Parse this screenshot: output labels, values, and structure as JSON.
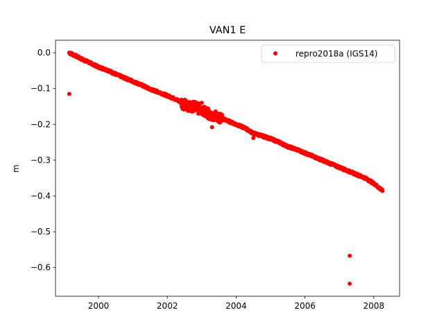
{
  "chart_data": {
    "type": "scatter",
    "title": "VAN1 E",
    "xlabel": "",
    "ylabel": "m",
    "xlim": [
      1998.75,
      2008.75
    ],
    "ylim": [
      -0.68,
      0.035
    ],
    "xticks": [
      2000,
      2002,
      2004,
      2006,
      2008
    ],
    "xtick_labels": [
      "2000",
      "2002",
      "2004",
      "2006",
      "2008"
    ],
    "yticks": [
      0.0,
      -0.1,
      -0.2,
      -0.3,
      -0.4,
      -0.5,
      -0.6
    ],
    "ytick_labels": [
      "0.0",
      "−0.1",
      "−0.2",
      "−0.3",
      "−0.4",
      "−0.5",
      "−0.6"
    ],
    "grid": false,
    "legend": {
      "position": "upper right",
      "entries": [
        "repro2018a (IGS14)"
      ]
    },
    "series": [
      {
        "name": "repro2018a (IGS14)",
        "color": "#ff0000",
        "marker": "circle",
        "trend": {
          "x_start": 1999.15,
          "y_start": 0.0,
          "x_end": 2008.25,
          "y_end": -0.385
        },
        "x": [
          1999.15,
          1999.3,
          1999.5,
          1999.75,
          2000.0,
          2000.25,
          2000.5,
          2000.75,
          2001.0,
          2001.25,
          2001.5,
          2001.75,
          2002.0,
          2002.25,
          2002.5,
          2002.75,
          2003.0,
          2003.25,
          2003.5,
          2003.75,
          2004.0,
          2004.25,
          2004.5,
          2004.75,
          2005.0,
          2005.25,
          2005.5,
          2005.75,
          2006.0,
          2006.25,
          2006.5,
          2006.75,
          2007.0,
          2007.25,
          2007.5,
          2007.75,
          2008.0,
          2008.25
        ],
        "y": [
          0.0,
          -0.007,
          -0.017,
          -0.028,
          -0.04,
          -0.048,
          -0.06,
          -0.07,
          -0.08,
          -0.09,
          -0.102,
          -0.11,
          -0.12,
          -0.13,
          -0.145,
          -0.15,
          -0.158,
          -0.175,
          -0.18,
          -0.19,
          -0.2,
          -0.21,
          -0.225,
          -0.232,
          -0.24,
          -0.25,
          -0.262,
          -0.27,
          -0.28,
          -0.29,
          -0.3,
          -0.31,
          -0.32,
          -0.33,
          -0.34,
          -0.35,
          -0.365,
          -0.385
        ],
        "outliers": [
          {
            "x": 1999.15,
            "y": -0.115
          },
          {
            "x": 2003.3,
            "y": -0.208
          },
          {
            "x": 2002.6,
            "y": -0.162
          },
          {
            "x": 2002.9,
            "y": -0.17
          },
          {
            "x": 2003.0,
            "y": -0.14
          },
          {
            "x": 2004.5,
            "y": -0.238
          },
          {
            "x": 2005.2,
            "y": -0.248
          },
          {
            "x": 2007.3,
            "y": -0.567
          },
          {
            "x": 2007.3,
            "y": -0.645
          }
        ]
      }
    ]
  }
}
